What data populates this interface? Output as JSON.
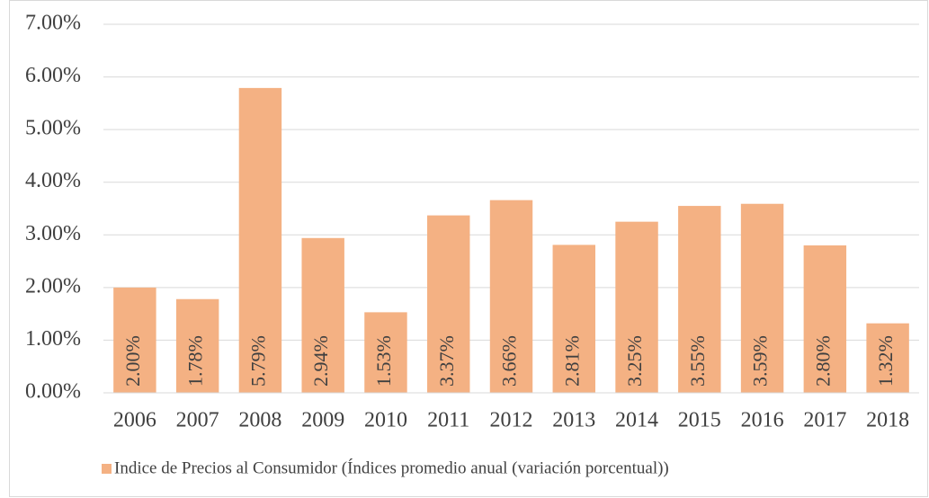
{
  "chart_data": {
    "type": "bar",
    "categories": [
      "2006",
      "2007",
      "2008",
      "2009",
      "2010",
      "2011",
      "2012",
      "2013",
      "2014",
      "2015",
      "2016",
      "2017",
      "2018"
    ],
    "series": [
      {
        "name": "Indice de Precios al Consumidor (Índices promedio anual (variación porcentual))",
        "color": "#f4b183",
        "values": [
          2.0,
          1.78,
          5.79,
          2.94,
          1.53,
          3.37,
          3.66,
          2.81,
          3.25,
          3.55,
          3.59,
          2.8,
          1.32
        ],
        "value_labels": [
          "2.00%",
          "1.78%",
          "5.79%",
          "2.94%",
          "1.53%",
          "3.37%",
          "3.66%",
          "2.81%",
          "3.25%",
          "3.55%",
          "3.59%",
          "2.80%",
          "1.32%"
        ]
      }
    ],
    "ylim": [
      0,
      7
    ],
    "yticks": [
      {
        "value": 0,
        "label": "0.00%"
      },
      {
        "value": 1,
        "label": "1.00%"
      },
      {
        "value": 2,
        "label": "2.00%"
      },
      {
        "value": 3,
        "label": "3.00%"
      },
      {
        "value": 4,
        "label": "4.00%"
      },
      {
        "value": 5,
        "label": "5.00%"
      },
      {
        "value": 6,
        "label": "6.00%"
      },
      {
        "value": 7,
        "label": "7.00%"
      }
    ],
    "grid": true,
    "legend": "bottom"
  }
}
